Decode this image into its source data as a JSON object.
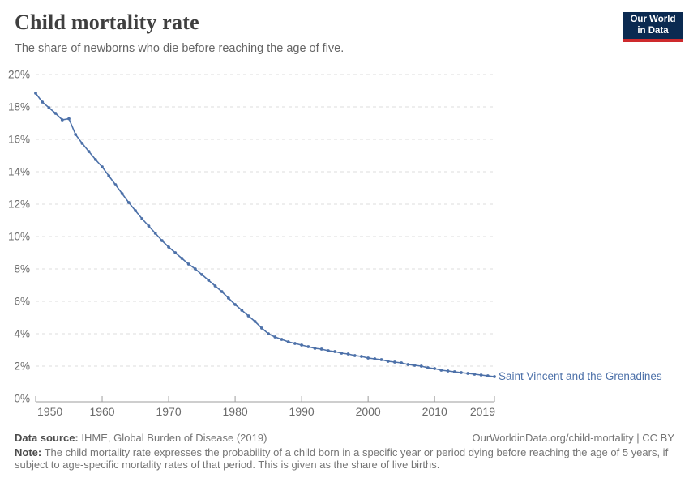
{
  "header": {
    "title": "Child mortality rate",
    "subtitle": "The share of newborns who die before reaching the age of five.",
    "logo": {
      "line1": "Our World",
      "line2": "in Data"
    }
  },
  "colors": {
    "series": "#4d71a9",
    "gridline": "#dcdcdc",
    "axis": "#9e9e9e",
    "logo_bg": "#0b2a51",
    "logo_accent": "#ce2a2d"
  },
  "chart_data": {
    "type": "line",
    "title": "Child mortality rate",
    "subtitle": "The share of newborns who die before reaching the age of five.",
    "xlabel": "",
    "ylabel": "",
    "xlim": [
      1950,
      2019
    ],
    "ylim": [
      0,
      20
    ],
    "grid": "horizontal-dashed",
    "legend_position": "end-of-line-label",
    "x_ticks": [
      1950,
      1960,
      1970,
      1980,
      1990,
      2000,
      2010,
      2019
    ],
    "x_tick_labels": [
      "1950",
      "1960",
      "1970",
      "1980",
      "1990",
      "2000",
      "2010",
      "2019"
    ],
    "y_ticks": [
      0,
      2,
      4,
      6,
      8,
      10,
      12,
      14,
      16,
      18,
      20
    ],
    "y_tick_labels": [
      "0%",
      "2%",
      "4%",
      "6%",
      "8%",
      "10%",
      "12%",
      "14%",
      "16%",
      "18%",
      "20%"
    ],
    "series": [
      {
        "name": "Saint Vincent and the Grenadines",
        "color": "#4d71a9",
        "x": [
          1950,
          1951,
          1952,
          1953,
          1954,
          1955,
          1956,
          1957,
          1958,
          1959,
          1960,
          1961,
          1962,
          1963,
          1964,
          1965,
          1966,
          1967,
          1968,
          1969,
          1970,
          1971,
          1972,
          1973,
          1974,
          1975,
          1976,
          1977,
          1978,
          1979,
          1980,
          1981,
          1982,
          1983,
          1984,
          1985,
          1986,
          1987,
          1988,
          1989,
          1990,
          1991,
          1992,
          1993,
          1994,
          1995,
          1996,
          1997,
          1998,
          1999,
          2000,
          2001,
          2002,
          2003,
          2004,
          2005,
          2006,
          2007,
          2008,
          2009,
          2010,
          2011,
          2012,
          2013,
          2014,
          2015,
          2016,
          2017,
          2018,
          2019
        ],
        "values": [
          18.85,
          18.3,
          17.95,
          17.6,
          17.2,
          17.27,
          16.3,
          15.75,
          15.25,
          14.75,
          14.3,
          13.75,
          13.2,
          12.65,
          12.1,
          11.6,
          11.1,
          10.65,
          10.2,
          9.75,
          9.35,
          9.0,
          8.65,
          8.3,
          8.0,
          7.65,
          7.3,
          6.95,
          6.6,
          6.2,
          5.8,
          5.45,
          5.1,
          4.75,
          4.35,
          4.0,
          3.8,
          3.65,
          3.5,
          3.4,
          3.3,
          3.2,
          3.1,
          3.05,
          2.95,
          2.9,
          2.8,
          2.75,
          2.65,
          2.6,
          2.5,
          2.45,
          2.4,
          2.3,
          2.25,
          2.2,
          2.1,
          2.05,
          2.0,
          1.9,
          1.85,
          1.75,
          1.7,
          1.65,
          1.6,
          1.55,
          1.5,
          1.45,
          1.4,
          1.35
        ]
      }
    ]
  },
  "footer": {
    "datasource_label": "Data source:",
    "datasource_value": "IHME, Global Burden of Disease (2019)",
    "link": "OurWorldinData.org/child-mortality | CC BY",
    "note_label": "Note:",
    "note_text": "The child mortality rate expresses the probability of a child born in a specific year or period dying before reaching the age of 5 years, if subject to age-specific mortality rates of that period. This is given as the share of live births."
  }
}
